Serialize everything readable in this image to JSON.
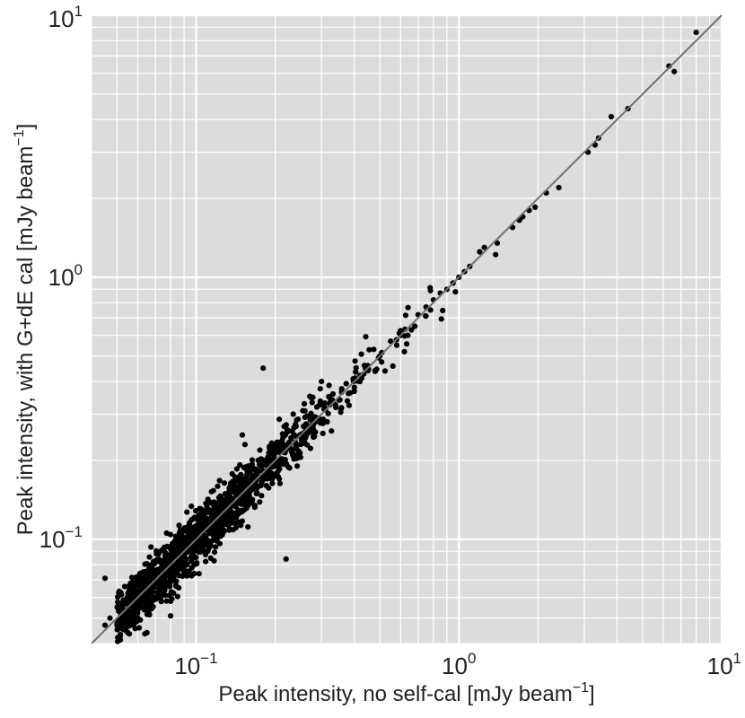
{
  "chart_data": {
    "type": "scatter",
    "title": "",
    "xlabel": "Peak intensity, no self-cal [mJy beam−1]",
    "ylabel": "Peak intensity, with G+dE cal [mJy beam−1]",
    "xlabel_parts": {
      "main": "Peak intensity, no self-cal [mJy beam",
      "sup": "−1",
      "close": "]"
    },
    "ylabel_parts": {
      "main": "Peak intensity, with G+dE cal [mJy beam",
      "sup": "−1",
      "close": "]"
    },
    "xscale": "log",
    "yscale": "log",
    "xlim": [
      0.04,
      10
    ],
    "ylim": [
      0.04,
      10
    ],
    "grid": true,
    "legend": "none",
    "x_ticks": [
      {
        "base": "10",
        "exp": "−1",
        "value": 0.1
      },
      {
        "base": "10",
        "exp": "0",
        "value": 1
      },
      {
        "base": "10",
        "exp": "1",
        "value": 10
      }
    ],
    "y_ticks": [
      {
        "base": "10",
        "exp": "−1",
        "value": 0.1
      },
      {
        "base": "10",
        "exp": "0",
        "value": 1
      },
      {
        "base": "10",
        "exp": "1",
        "value": 10
      }
    ],
    "reference_line": {
      "type": "y=x",
      "from": 0.04,
      "to": 10,
      "color": "#707070"
    },
    "colors": {
      "panel": "#dcdcdc",
      "grid": "#ffffff",
      "points": "#000000"
    },
    "n_points": 1500,
    "points": [
      [
        8.0,
        8.6
      ],
      [
        6.3,
        6.4
      ],
      [
        6.6,
        6.1
      ],
      [
        4.4,
        4.4
      ],
      [
        3.8,
        4.1
      ],
      [
        3.4,
        3.4
      ],
      [
        3.3,
        3.2
      ],
      [
        3.1,
        3.0
      ],
      [
        2.4,
        2.2
      ],
      [
        2.15,
        2.1
      ],
      [
        1.95,
        1.85
      ],
      [
        1.85,
        1.8
      ],
      [
        1.75,
        1.7
      ],
      [
        1.7,
        1.65
      ],
      [
        1.6,
        1.55
      ],
      [
        1.25,
        1.3
      ],
      [
        1.2,
        1.25
      ],
      [
        1.4,
        1.35
      ],
      [
        1.38,
        1.22
      ],
      [
        1.1,
        1.1
      ],
      [
        1.05,
        1.05
      ],
      [
        0.95,
        0.95
      ],
      [
        1.0,
        1.0
      ],
      [
        0.9,
        0.9
      ],
      [
        0.97,
        0.88
      ],
      [
        0.85,
        0.87
      ],
      [
        0.8,
        0.82
      ],
      [
        0.78,
        0.75
      ],
      [
        0.75,
        0.77
      ],
      [
        0.7,
        0.72
      ],
      [
        0.68,
        0.65
      ],
      [
        0.66,
        0.63
      ],
      [
        0.6,
        0.6
      ],
      [
        0.58,
        0.55
      ],
      [
        0.55,
        0.57
      ],
      [
        0.5,
        0.5
      ],
      [
        0.62,
        0.52
      ],
      [
        0.48,
        0.44
      ],
      [
        0.45,
        0.45
      ],
      [
        0.42,
        0.4
      ],
      [
        0.4,
        0.38
      ],
      [
        0.38,
        0.36
      ],
      [
        0.35,
        0.34
      ],
      [
        0.18,
        0.45
      ],
      [
        0.3,
        0.4
      ],
      [
        0.32,
        0.35
      ],
      [
        0.28,
        0.25
      ],
      [
        0.27,
        0.27
      ],
      [
        0.25,
        0.23
      ],
      [
        0.22,
        0.22
      ],
      [
        0.2,
        0.2
      ],
      [
        0.15,
        0.25
      ],
      [
        0.17,
        0.16
      ],
      [
        0.12,
        0.1
      ],
      [
        0.1,
        0.1
      ],
      [
        0.09,
        0.08
      ],
      [
        0.08,
        0.07
      ],
      [
        0.07,
        0.07
      ],
      [
        0.22,
        0.084
      ],
      [
        0.065,
        0.06
      ],
      [
        0.06,
        0.056
      ],
      [
        0.055,
        0.05
      ],
      [
        0.05,
        0.047
      ],
      [
        0.047,
        0.05
      ],
      [
        0.045,
        0.047
      ],
      [
        0.065,
        0.044
      ],
      [
        0.06,
        0.072
      ],
      [
        0.045,
        0.071
      ],
      [
        0.06,
        0.05
      ],
      [
        0.058,
        0.052
      ],
      [
        0.052,
        0.052
      ],
      [
        0.08,
        0.051
      ],
      [
        0.08,
        0.058
      ]
    ]
  }
}
